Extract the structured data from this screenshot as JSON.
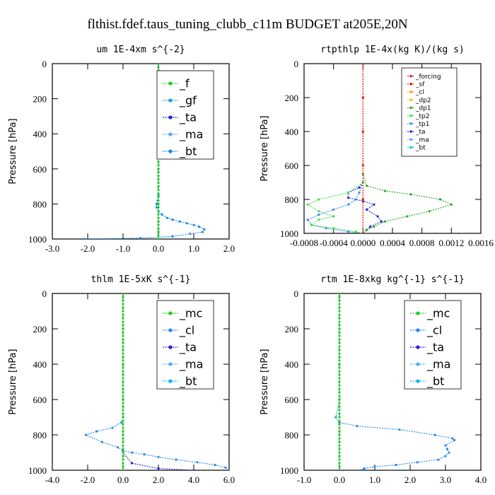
{
  "figure_title": "flthist.fdef.taus_tuning_clubb_c11m  BUDGET at205E,20N",
  "chart_data": [
    {
      "type": "line",
      "title": "um  1E-4xm s^{-2}",
      "ylabel": "Pressure [hPa]",
      "xlim": [
        -3.0,
        2.0
      ],
      "ylim": [
        1000,
        0
      ],
      "xticks": [
        "-3.0",
        "-2.0",
        "-1.0",
        "0.0",
        "1.0",
        "2.0"
      ],
      "xtick_values": [
        -3,
        -2,
        -1,
        0,
        1,
        2
      ],
      "yticks": [
        0,
        200,
        400,
        600,
        800,
        1000
      ],
      "legend": "top-right",
      "series": [
        {
          "name": "_f",
          "color": "#22cc22",
          "x": [
            0,
            0,
            0,
            0,
            0,
            0,
            0,
            0,
            0,
            0,
            0,
            0,
            0,
            0,
            0,
            0,
            0,
            0,
            0,
            0,
            0,
            0,
            0,
            0,
            0,
            0,
            0,
            0,
            0,
            0,
            0,
            0,
            0,
            0,
            0,
            0,
            0,
            0,
            0,
            0,
            0,
            0,
            0,
            0,
            0,
            0,
            0,
            0,
            0,
            0,
            0
          ],
          "y": [
            0,
            20,
            40,
            60,
            80,
            100,
            120,
            140,
            160,
            180,
            200,
            220,
            240,
            260,
            280,
            300,
            320,
            340,
            360,
            380,
            400,
            420,
            440,
            460,
            480,
            500,
            520,
            540,
            560,
            580,
            600,
            620,
            640,
            660,
            680,
            700,
            720,
            740,
            760,
            780,
            800,
            820,
            840,
            860,
            880,
            900,
            920,
            940,
            960,
            980,
            1000
          ]
        },
        {
          "name": "_gf",
          "color": "#2299ee",
          "x": [
            0,
            0,
            0,
            0,
            0,
            0,
            0,
            0,
            0,
            0,
            0,
            0,
            0,
            0,
            0,
            0,
            0,
            0,
            0,
            0,
            0,
            0,
            0,
            0,
            0,
            0,
            0,
            0,
            0,
            0,
            0,
            0,
            0,
            0,
            0,
            0,
            0,
            0,
            0,
            0,
            0,
            0,
            0,
            0,
            0,
            0,
            0,
            0,
            0,
            0,
            0
          ],
          "y": [
            0,
            20,
            40,
            60,
            80,
            100,
            120,
            140,
            160,
            180,
            200,
            220,
            240,
            260,
            280,
            300,
            320,
            340,
            360,
            380,
            400,
            420,
            440,
            460,
            480,
            500,
            520,
            540,
            560,
            580,
            600,
            620,
            640,
            660,
            680,
            700,
            720,
            740,
            760,
            780,
            800,
            820,
            840,
            860,
            880,
            900,
            920,
            940,
            960,
            980,
            1000
          ]
        },
        {
          "name": "_ta",
          "color": "#2222dd",
          "x": [
            0,
            0,
            0,
            0,
            0,
            0,
            0,
            0
          ],
          "y": [
            0,
            200,
            400,
            600,
            800,
            900,
            960,
            1000
          ]
        },
        {
          "name": "_ma",
          "color": "#55aaff",
          "x": [
            0,
            0,
            0,
            0,
            0,
            0,
            0,
            0
          ],
          "y": [
            0,
            200,
            400,
            600,
            800,
            900,
            960,
            1000
          ]
        },
        {
          "name": "_bt",
          "color": "#1188ee",
          "x": [
            0,
            0,
            0,
            0,
            0,
            0,
            -0.02,
            -0.05,
            -0.05,
            0,
            0.1,
            0.25,
            0.4,
            0.6,
            0.8,
            1.0,
            1.15,
            1.3,
            1.25,
            0.9,
            0.4,
            -0.5,
            -2.1
          ],
          "y": [
            0,
            200,
            400,
            600,
            700,
            750,
            780,
            800,
            820,
            840,
            860,
            880,
            890,
            900,
            910,
            920,
            930,
            945,
            960,
            970,
            985,
            995,
            1000
          ]
        }
      ]
    },
    {
      "type": "line",
      "title": "rtpthlp  1E-4x(kg K)/(kg s)",
      "ylabel": "Pressure [hPa]",
      "xlim": [
        -0.0008,
        0.0016
      ],
      "ylim": [
        1000,
        0
      ],
      "xticks": [
        "-0.0008",
        "-0.0004",
        "0.0000",
        "0.0004",
        "0.0008",
        "0.0012",
        "0.0016"
      ],
      "xtick_values": [
        -0.0008,
        -0.0004,
        0.0,
        0.0004,
        0.0008,
        0.0012,
        0.0016
      ],
      "yticks": [
        0,
        200,
        400,
        600,
        800,
        1000
      ],
      "legend": "top-right",
      "series": [
        {
          "name": "_forcing",
          "color": "#ee2222",
          "x": [
            0,
            0,
            0,
            0,
            0,
            0
          ],
          "y": [
            0,
            200,
            400,
            600,
            800,
            1000
          ]
        },
        {
          "name": "_sf",
          "color": "#dd1111",
          "x": [
            0,
            0,
            0,
            0,
            0,
            0
          ],
          "y": [
            0,
            200,
            400,
            600,
            800,
            1000
          ]
        },
        {
          "name": "_cl",
          "color": "#ff9900",
          "x": [
            0,
            0,
            0,
            0,
            0,
            0
          ],
          "y": [
            0,
            200,
            400,
            600,
            800,
            1000
          ]
        },
        {
          "name": "_dp2",
          "color": "#ddcc00",
          "x": [
            0,
            0,
            0,
            0,
            0,
            0
          ],
          "y": [
            0,
            200,
            400,
            600,
            800,
            1000
          ]
        },
        {
          "name": "_dp1",
          "color": "#22aa22",
          "x": [
            0,
            0,
            0,
            5e-05,
            0.0003,
            0.00065,
            0.00105,
            0.0012,
            0.0009,
            0.0006,
            0.0003,
            0.00015,
            5e-05,
            0
          ],
          "y": [
            0,
            400,
            650,
            720,
            750,
            770,
            800,
            830,
            870,
            900,
            930,
            960,
            980,
            1000
          ]
        },
        {
          "name": "_tp2",
          "color": "#44dd44",
          "x": [
            0,
            0,
            0,
            -0.0002,
            -0.0006,
            -0.00075,
            -0.0006,
            -0.0004,
            -0.0006,
            -0.0007,
            -0.0004,
            -0.0001,
            0
          ],
          "y": [
            0,
            400,
            700,
            760,
            800,
            830,
            870,
            900,
            920,
            950,
            970,
            990,
            1000
          ]
        },
        {
          "name": "_tp1",
          "color": "#3388ee",
          "x": [
            0,
            0,
            0,
            -5e-05,
            -0.0001,
            -0.0002,
            -0.0004,
            -0.0006,
            -0.00075,
            -0.0007,
            -0.0005,
            -0.0002,
            0
          ],
          "y": [
            0,
            400,
            700,
            760,
            800,
            830,
            860,
            890,
            920,
            950,
            970,
            990,
            1000
          ]
        },
        {
          "name": "_ta",
          "color": "#2222dd",
          "x": [
            0,
            0,
            0,
            -5e-05,
            -0.0002,
            -0.0002,
            0,
            0.00015,
            5e-05,
            0.0002,
            0.00025,
            0.0001,
            0
          ],
          "y": [
            0,
            400,
            700,
            730,
            760,
            790,
            810,
            830,
            860,
            900,
            930,
            960,
            1000
          ]
        },
        {
          "name": "_ma",
          "color": "#55aaff",
          "x": [
            0,
            0,
            0,
            0,
            0,
            0
          ],
          "y": [
            0,
            200,
            400,
            600,
            800,
            1000
          ]
        },
        {
          "name": "_bt",
          "color": "#00bbee",
          "x": [
            0,
            0,
            0,
            0,
            0,
            0
          ],
          "y": [
            0,
            200,
            400,
            600,
            800,
            1000
          ]
        }
      ]
    },
    {
      "type": "line",
      "title": "thlm  1E-5xK s^{-1}",
      "ylabel": "Pressure [hPa]",
      "xlim": [
        -4.0,
        6.0
      ],
      "ylim": [
        1000,
        0
      ],
      "xticks": [
        "-4.0",
        "-2.0",
        "0.0",
        "2.0",
        "4.0",
        "6.0"
      ],
      "xtick_values": [
        -4,
        -2,
        0,
        2,
        4,
        6
      ],
      "yticks": [
        0,
        200,
        400,
        600,
        800,
        1000
      ],
      "legend": "top-right",
      "series": [
        {
          "name": "_mc",
          "color": "#22cc22",
          "x": [
            0,
            0,
            0,
            0,
            0,
            0,
            0,
            0,
            0,
            0,
            0,
            0,
            0,
            0,
            0,
            0,
            0,
            0,
            0,
            0,
            0,
            0,
            0,
            0,
            0,
            0,
            0,
            0,
            0,
            0,
            0,
            0,
            0,
            0,
            0,
            0,
            0,
            0,
            0,
            0,
            0,
            0,
            0,
            0,
            0,
            0,
            0,
            0,
            0,
            0,
            0
          ],
          "y": [
            0,
            20,
            40,
            60,
            80,
            100,
            120,
            140,
            160,
            180,
            200,
            220,
            240,
            260,
            280,
            300,
            320,
            340,
            360,
            380,
            400,
            420,
            440,
            460,
            480,
            500,
            520,
            540,
            560,
            580,
            600,
            620,
            640,
            660,
            680,
            700,
            720,
            740,
            760,
            780,
            800,
            820,
            840,
            860,
            880,
            900,
            920,
            940,
            960,
            980,
            1000
          ]
        },
        {
          "name": "_cl",
          "color": "#2288ee",
          "x": [
            0,
            0,
            0,
            0,
            0,
            -0.1,
            -0.6,
            -1.5,
            -2.1,
            -1.2,
            -0.3,
            0,
            0.5,
            1.2,
            2.0,
            3.0,
            4.2,
            5.2,
            5.8,
            6.0
          ],
          "y": [
            0,
            200,
            400,
            600,
            700,
            730,
            760,
            780,
            800,
            840,
            870,
            890,
            900,
            910,
            925,
            940,
            955,
            970,
            985,
            1000
          ]
        },
        {
          "name": "_ta",
          "color": "#2222dd",
          "x": [
            0,
            0,
            0,
            0,
            0,
            0,
            0.5,
            2.0,
            4.0
          ],
          "y": [
            0,
            200,
            400,
            600,
            800,
            900,
            960,
            990,
            1000
          ]
        },
        {
          "name": "_ma",
          "color": "#55aaff",
          "x": [
            0,
            0,
            0,
            0,
            0,
            0
          ],
          "y": [
            0,
            200,
            400,
            600,
            800,
            1000
          ]
        },
        {
          "name": "_bt",
          "color": "#00bbee",
          "x": [
            0,
            0,
            0,
            0,
            0,
            0
          ],
          "y": [
            0,
            200,
            400,
            600,
            800,
            1000
          ]
        }
      ]
    },
    {
      "type": "line",
      "title": "rtm  1E-8xkg kg^{-1} s^{-1}",
      "ylabel": "Pressure [hPa]",
      "xlim": [
        -1.0,
        4.0
      ],
      "ylim": [
        1000,
        0
      ],
      "xticks": [
        "-1.0",
        "0.0",
        "1.0",
        "2.0",
        "3.0",
        "4.0"
      ],
      "xtick_values": [
        -1,
        0,
        1,
        2,
        3,
        4
      ],
      "yticks": [
        0,
        200,
        400,
        600,
        800,
        1000
      ],
      "legend": "top-right",
      "series": [
        {
          "name": "_mc",
          "color": "#22cc22",
          "x": [
            0,
            0,
            0,
            0,
            0,
            0,
            0,
            0,
            0,
            0,
            0,
            0,
            0,
            0,
            0,
            0,
            0,
            0,
            0,
            0,
            0,
            0,
            0,
            0,
            0,
            0,
            0,
            0,
            0,
            0,
            0,
            0,
            0,
            0,
            0,
            0,
            0,
            0,
            0,
            0,
            0,
            0,
            0,
            0,
            0,
            0,
            0,
            0,
            0,
            0,
            0
          ],
          "y": [
            0,
            20,
            40,
            60,
            80,
            100,
            120,
            140,
            160,
            180,
            200,
            220,
            240,
            260,
            280,
            300,
            320,
            340,
            360,
            380,
            400,
            420,
            440,
            460,
            480,
            500,
            520,
            540,
            560,
            580,
            600,
            620,
            640,
            660,
            680,
            700,
            720,
            740,
            760,
            780,
            800,
            820,
            840,
            860,
            880,
            900,
            920,
            940,
            960,
            980,
            1000
          ]
        },
        {
          "name": "_cl",
          "color": "#2288ee",
          "x": [
            0,
            0,
            0,
            0,
            -0.1,
            0,
            0.5,
            1.7,
            2.7,
            3.2,
            3.25,
            3.0,
            3.05,
            3.1,
            3.0,
            2.8,
            2.2,
            1.6,
            1.0,
            0.7,
            0.6
          ],
          "y": [
            0,
            200,
            400,
            600,
            700,
            730,
            750,
            770,
            800,
            820,
            830,
            860,
            880,
            900,
            920,
            940,
            955,
            970,
            980,
            990,
            1000
          ]
        },
        {
          "name": "_ta",
          "color": "#2222dd",
          "x": [
            0,
            0,
            0,
            0,
            0,
            0
          ],
          "y": [
            0,
            200,
            400,
            600,
            800,
            1000
          ]
        },
        {
          "name": "_ma",
          "color": "#55aaff",
          "x": [
            0,
            0,
            0,
            0,
            0,
            0
          ],
          "y": [
            0,
            200,
            400,
            600,
            800,
            1000
          ]
        },
        {
          "name": "_bt",
          "color": "#00bbee",
          "x": [
            0,
            0,
            0,
            0,
            0,
            0
          ],
          "y": [
            0,
            200,
            400,
            600,
            800,
            1000
          ]
        }
      ]
    }
  ]
}
